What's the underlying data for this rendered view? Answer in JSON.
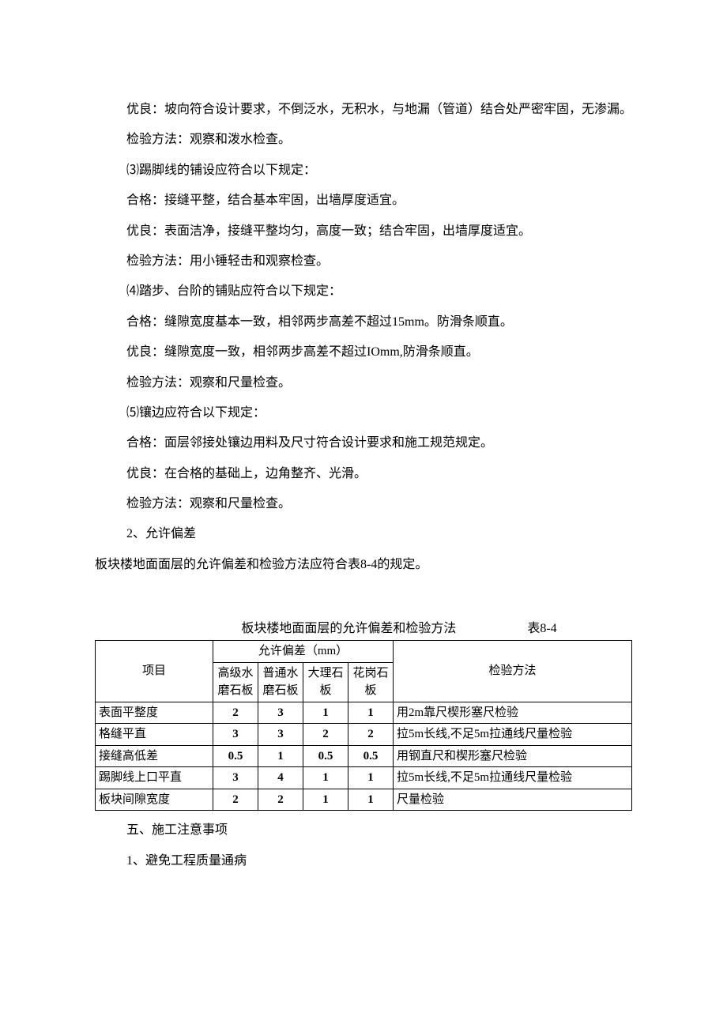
{
  "paragraphs": {
    "p1": "优良：坡向符合设计要求，不倒泛水，无积水，与地漏（管道）结合处严密牢固，无渗漏。",
    "p2": "检验方法：观察和泼水检查。",
    "p3": "⑶踢脚线的铺设应符合以下规定：",
    "p4": "合格：接缝平整，结合基本牢固，出墙厚度适宜。",
    "p5": "优良：表面洁净，接缝平整均匀，高度一致；结合牢固，出墙厚度适宜。",
    "p6": "检验方法：用小锤轻击和观察检查。",
    "p7": "⑷踏步、台阶的铺贴应符合以下规定：",
    "p8": "合格：缝隙宽度基本一致，相邻两步高差不超过15mm。防滑条顺直。",
    "p9": "优良：缝隙宽度一致，相邻两步高差不超过IOmm,防滑条顺直。",
    "p10": "检验方法：观察和尺量检查。",
    "p11": "⑸镶边应符合以下规定：",
    "p12": "合格：面层邻接处镶边用料及尺寸符合设计要求和施工规范规定。",
    "p13": "优良：在合格的基础上，边角整齐、光滑。",
    "p14": "检验方法：观察和尺量检查。",
    "p15": "2、允许偏差",
    "p16": "板块楼地面面层的允许偏差和检验方法应符合表8-4的规定。"
  },
  "table": {
    "caption_left": "板块楼地面面层的允许偏差和检验方法",
    "caption_right": "表8-4",
    "header": {
      "item": "项目",
      "tolerance": "允许偏差（mm）",
      "method": "检验方法",
      "cols": [
        "高级水磨石板",
        "普通水磨石板",
        "大理石板",
        "花岗石板"
      ]
    },
    "rows": [
      {
        "item": "表面平整度",
        "vals": [
          "2",
          "3",
          "1",
          "1"
        ],
        "method": "用2m靠尺楔形塞尺检验"
      },
      {
        "item": "格缝平直",
        "vals": [
          "3",
          "3",
          "2",
          "2"
        ],
        "method": "拉5m长线,不足5m拉通线尺量检验"
      },
      {
        "item": "接缝高低差",
        "vals": [
          "0.5",
          "1",
          "0.5",
          "0.5"
        ],
        "method": "用钢直尺和楔形塞尺检验"
      },
      {
        "item": "踢脚线上口平直",
        "vals": [
          "3",
          "4",
          "1",
          "1"
        ],
        "method": "拉5m长线,不足5m拉通线尺量检验"
      },
      {
        "item": "板块间隙宽度",
        "vals": [
          "2",
          "2",
          "1",
          "1"
        ],
        "method": "尺量检验"
      }
    ]
  },
  "after": {
    "a1": "五、施工注意事项",
    "a2": "1、避免工程质量通病"
  }
}
